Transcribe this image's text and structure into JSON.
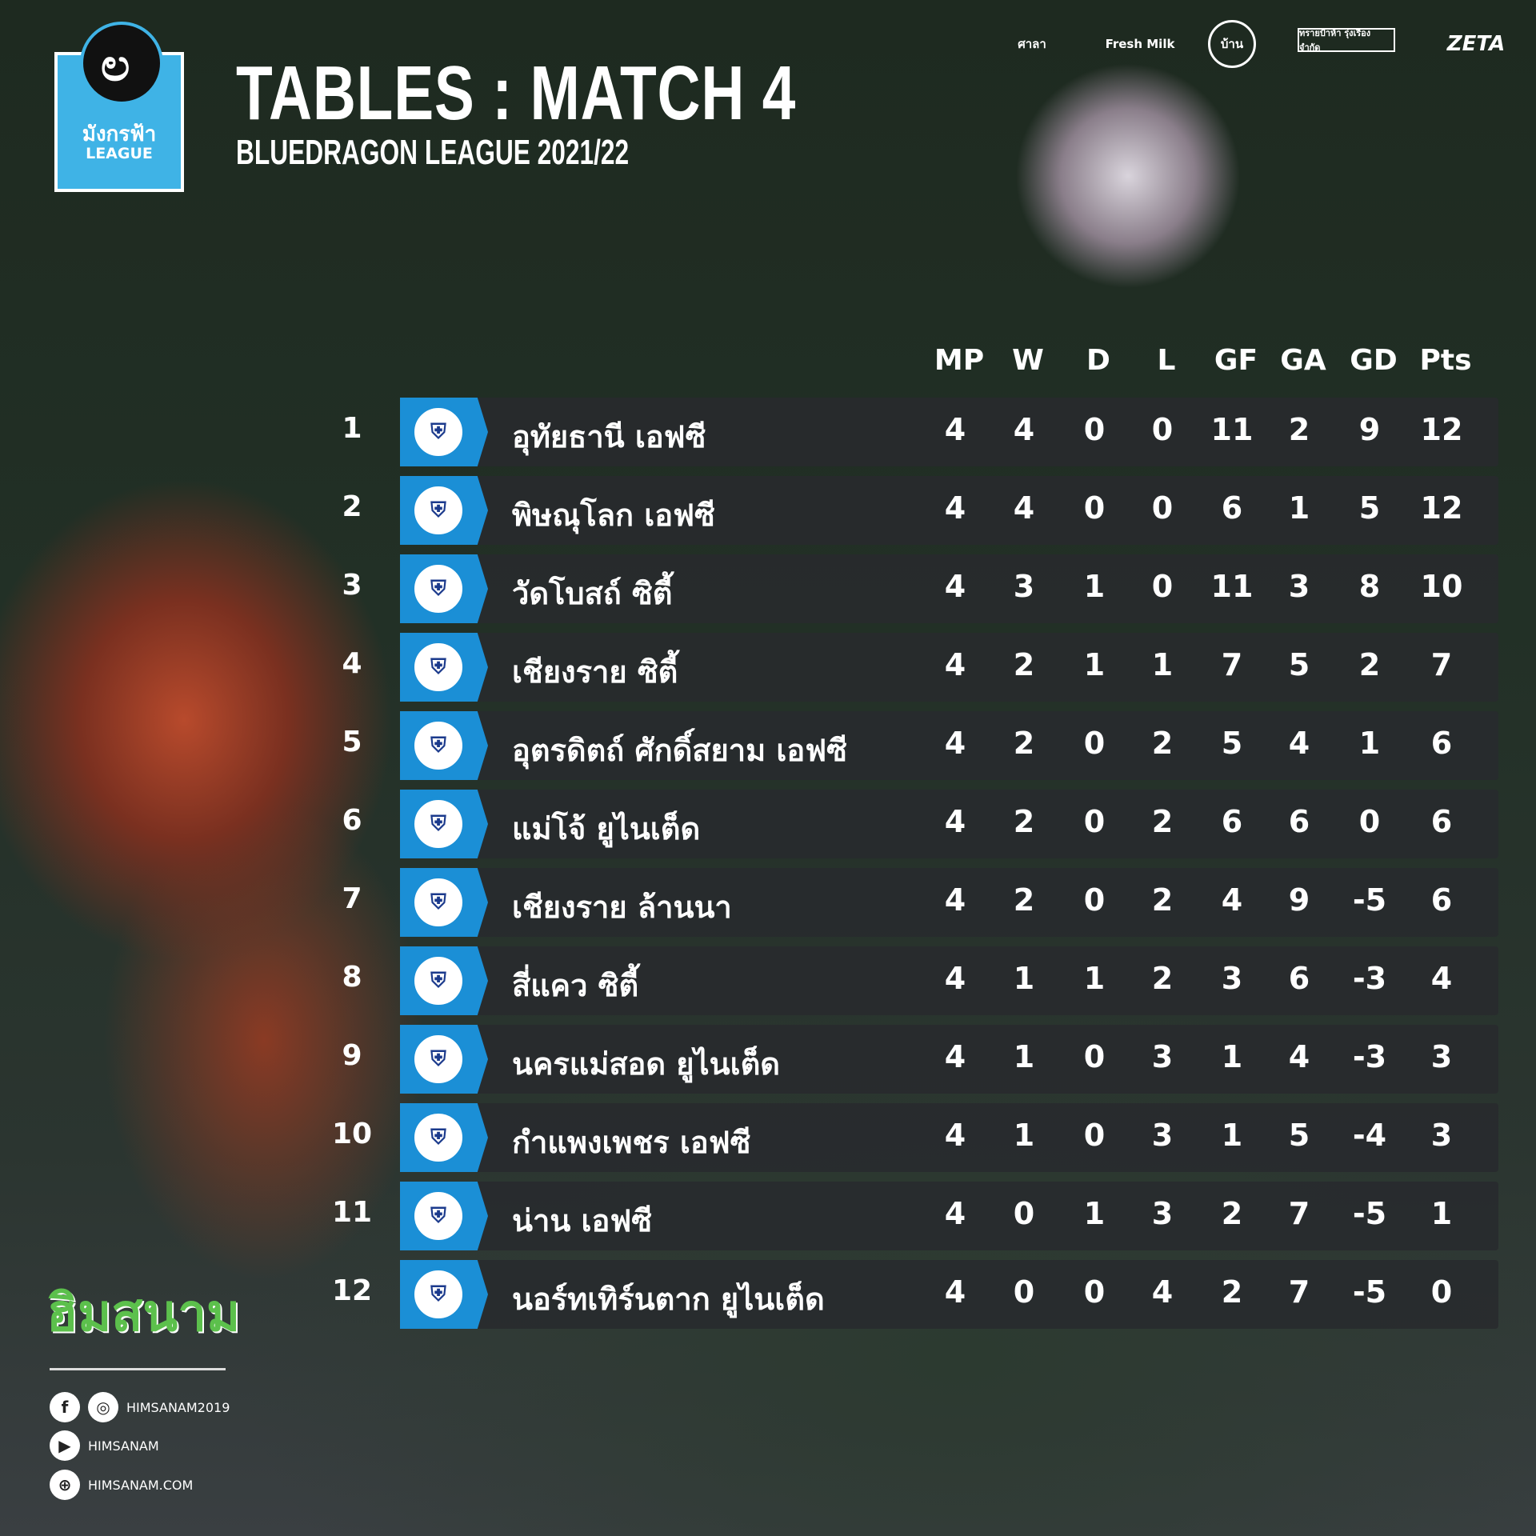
{
  "league_logo": {
    "thai": "มังกรฟ้า",
    "en": "LEAGUE"
  },
  "title": "TABLES : MATCH 4",
  "subtitle": "BLUEDRAGON LEAGUE 2021/22",
  "sponsors": [
    "ศาลา",
    "Fresh Milk",
    "บ้าน",
    "ทรายป้าห้า รุ่งเรือง จำกัด",
    "ZETA"
  ],
  "columns": [
    "MP",
    "W",
    "D",
    "L",
    "GF",
    "GA",
    "GD",
    "Pts"
  ],
  "rows": [
    {
      "rank": "1",
      "team": "อุทัยธานี เอฟซี",
      "v": [
        "4",
        "4",
        "0",
        "0",
        "11",
        "2",
        "9",
        "12"
      ]
    },
    {
      "rank": "2",
      "team": "พิษณุโลก เอฟซี",
      "v": [
        "4",
        "4",
        "0",
        "0",
        "6",
        "1",
        "5",
        "12"
      ]
    },
    {
      "rank": "3",
      "team": "วัดโบสถ์ ซิตี้",
      "v": [
        "4",
        "3",
        "1",
        "0",
        "11",
        "3",
        "8",
        "10"
      ]
    },
    {
      "rank": "4",
      "team": "เชียงราย ซิตี้",
      "v": [
        "4",
        "2",
        "1",
        "1",
        "7",
        "5",
        "2",
        "7"
      ]
    },
    {
      "rank": "5",
      "team": "อุตรดิตถ์ ศักดิ์สยาม เอฟซี",
      "v": [
        "4",
        "2",
        "0",
        "2",
        "5",
        "4",
        "1",
        "6"
      ]
    },
    {
      "rank": "6",
      "team": "แม่โจ้ ยูไนเต็ด",
      "v": [
        "4",
        "2",
        "0",
        "2",
        "6",
        "6",
        "0",
        "6"
      ]
    },
    {
      "rank": "7",
      "team": "เชียงราย ล้านนา",
      "v": [
        "4",
        "2",
        "0",
        "2",
        "4",
        "9",
        "-5",
        "6"
      ]
    },
    {
      "rank": "8",
      "team": "สี่แคว ซิตี้",
      "v": [
        "4",
        "1",
        "1",
        "2",
        "3",
        "6",
        "-3",
        "4"
      ]
    },
    {
      "rank": "9",
      "team": "นครแม่สอด ยูไนเต็ด",
      "v": [
        "4",
        "1",
        "0",
        "3",
        "1",
        "4",
        "-3",
        "3"
      ]
    },
    {
      "rank": "10",
      "team": "กำแพงเพชร เอฟซี",
      "v": [
        "4",
        "1",
        "0",
        "3",
        "1",
        "5",
        "-4",
        "3"
      ]
    },
    {
      "rank": "11",
      "team": "น่าน เอฟซี",
      "v": [
        "4",
        "0",
        "1",
        "3",
        "2",
        "7",
        "-5",
        "1"
      ]
    },
    {
      "rank": "12",
      "team": "นอร์ทเทิร์นตาก ยูไนเต็ด",
      "v": [
        "4",
        "0",
        "0",
        "4",
        "2",
        "7",
        "-5",
        "0"
      ]
    }
  ],
  "footer": {
    "brand": "ฮิมสนาม",
    "facebook_instagram": "HIMSANAM2019",
    "youtube": "HIMSANAM",
    "website": "HIMSANAM.COM"
  },
  "colors": {
    "accent": "#1b8fd6",
    "brand_green": "#5cc04c",
    "row_bg": "#282a2e"
  }
}
